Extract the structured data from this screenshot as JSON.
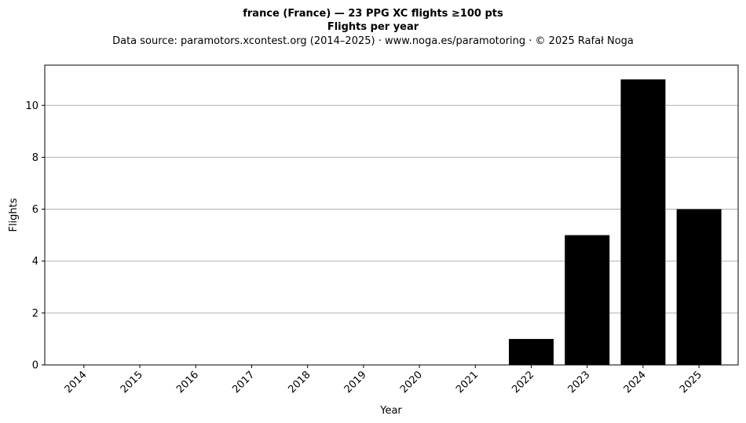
{
  "chart_data": {
    "type": "bar",
    "title": "france (France)  —  23 PPG XC flights ≥100 pts",
    "title_line2": "Flights per year",
    "subtitle": "Data source: paramotors.xcontest.org (2014–2025)  ·  www.noga.es/paramotoring  ·  © 2025 Rafał Noga",
    "xlabel": "Year",
    "ylabel": "Flights",
    "categories": [
      "2014",
      "2015",
      "2016",
      "2017",
      "2018",
      "2019",
      "2020",
      "2021",
      "2022",
      "2023",
      "2024",
      "2025"
    ],
    "values": [
      0,
      0,
      0,
      0,
      0,
      0,
      0,
      0,
      1,
      5,
      11,
      6
    ],
    "ylim": [
      0,
      11.55
    ],
    "yticks": [
      0,
      2,
      4,
      6,
      8,
      10
    ],
    "grid": "y",
    "bar_color": "#000000",
    "grid_color": "#b0b0b0"
  }
}
